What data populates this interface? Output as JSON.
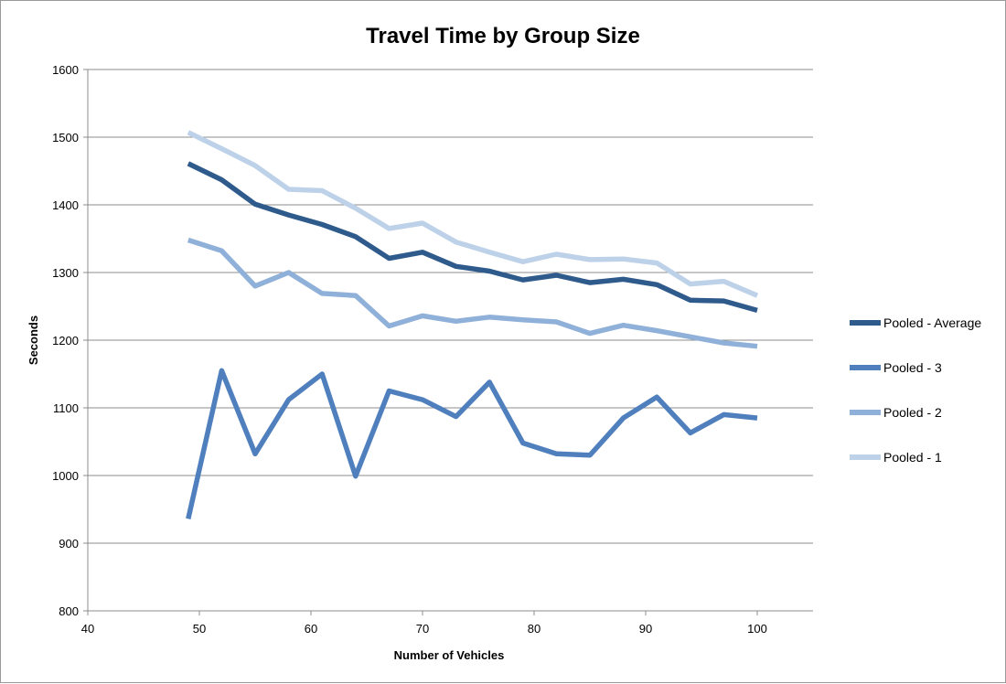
{
  "chart_data": {
    "type": "line",
    "title": "Travel Time by Group Size",
    "xlabel": "Number of Vehicles",
    "ylabel": "Seconds",
    "xlim": [
      40,
      105
    ],
    "ylim": [
      800,
      1600
    ],
    "xticks": [
      40,
      50,
      60,
      70,
      80,
      90,
      100
    ],
    "yticks": [
      800,
      900,
      1000,
      1100,
      1200,
      1300,
      1400,
      1500,
      1600
    ],
    "grid": "horizontal",
    "legend": "right",
    "x": [
      49,
      52,
      55,
      58,
      61,
      64,
      67,
      70,
      73,
      76,
      79,
      82,
      85,
      88,
      91,
      94,
      97,
      100
    ],
    "series": [
      {
        "name": "Pooled - Average",
        "color": "#2e5a8c",
        "values": [
          1461,
          1437,
          1401,
          1385,
          1371,
          1353,
          1321,
          1330,
          1309,
          1302,
          1289,
          1296,
          1285,
          1290,
          1282,
          1259,
          1258,
          1244
        ]
      },
      {
        "name": "Pooled - 3",
        "color": "#4f7fbd",
        "values": [
          936,
          1155,
          1032,
          1112,
          1150,
          999,
          1125,
          1112,
          1087,
          1138,
          1048,
          1032,
          1030,
          1085,
          1116,
          1063,
          1090,
          1085
        ]
      },
      {
        "name": "Pooled - 2",
        "color": "#8fb0d8",
        "values": [
          1348,
          1332,
          1280,
          1300,
          1269,
          1266,
          1221,
          1236,
          1228,
          1234,
          1230,
          1227,
          1210,
          1222,
          1214,
          1205,
          1196,
          1191
        ]
      },
      {
        "name": "Pooled - 1",
        "color": "#bdd1e9",
        "values": [
          1507,
          1483,
          1458,
          1423,
          1421,
          1395,
          1365,
          1373,
          1345,
          1330,
          1316,
          1327,
          1319,
          1320,
          1314,
          1283,
          1287,
          1266
        ]
      }
    ]
  }
}
